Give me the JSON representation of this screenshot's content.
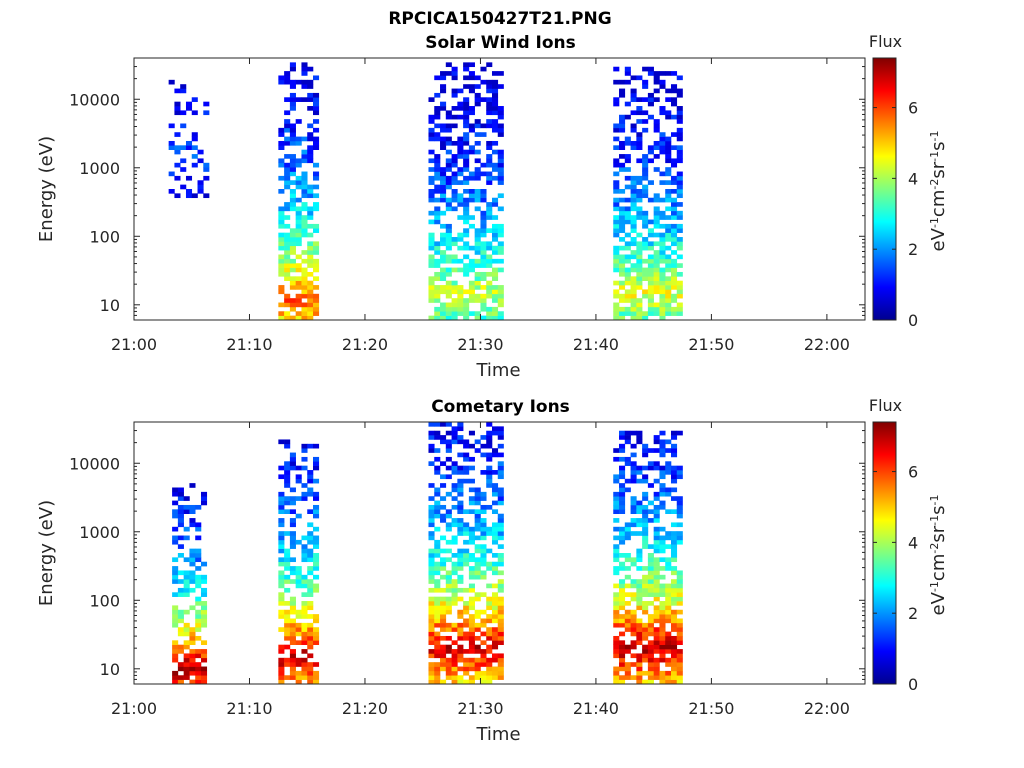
{
  "figure_title": "RPCICA150427T21.PNG",
  "chart_data": [
    {
      "type": "heatmap",
      "title": "Solar Wind Ions",
      "xlabel": "Time",
      "ylabel": "Energy (eV)",
      "x_ticks": [
        "21:00",
        "21:10",
        "21:20",
        "21:30",
        "21:40",
        "21:50",
        "22:00"
      ],
      "y_ticks": [
        "10",
        "100",
        "1000",
        "10000"
      ],
      "y_scale": "log",
      "xlim": [
        "21:00",
        "22:03"
      ],
      "ylim": [
        6,
        40000
      ],
      "colorbar": {
        "title": "Flux",
        "label_html": "eV<tspan dy='-6' font-size='11'>-1</tspan><tspan dy='6'>cm</tspan><tspan dy='-6' font-size='11'>-2</tspan><tspan dy='6'>sr</tspan><tspan dy='-6' font-size='11'>-1</tspan><tspan dy='6'>s</tspan><tspan dy='-6' font-size='11'>-1</tspan>",
        "ticks": [
          "0",
          "2",
          "4",
          "6"
        ],
        "range": [
          0,
          7.4
        ],
        "colormap": "jet"
      },
      "bursts": [
        {
          "t0": 3.0,
          "t1": 6.5,
          "emin": 350,
          "emax": 22000,
          "peak": 1.6,
          "peak_e": 2000,
          "density": 0.35
        },
        {
          "t0": 12.5,
          "t1": 16.0,
          "emin": 6,
          "emax": 35000,
          "peak": 5.8,
          "peak_e": 12,
          "density": 0.75
        },
        {
          "t0": 25.5,
          "t1": 32.0,
          "emin": 6,
          "emax": 35000,
          "peak": 4.2,
          "peak_e": 15,
          "density": 0.7
        },
        {
          "t0": 41.5,
          "t1": 47.5,
          "emin": 6,
          "emax": 30000,
          "peak": 4.4,
          "peak_e": 15,
          "density": 0.75
        }
      ]
    },
    {
      "type": "heatmap",
      "title": "Cometary Ions",
      "xlabel": "Time",
      "ylabel": "Energy (eV)",
      "x_ticks": [
        "21:00",
        "21:10",
        "21:20",
        "21:30",
        "21:40",
        "21:50",
        "22:00"
      ],
      "y_ticks": [
        "10",
        "100",
        "1000",
        "10000"
      ],
      "y_scale": "log",
      "xlim": [
        "21:00",
        "22:03"
      ],
      "ylim": [
        6,
        40000
      ],
      "colorbar": {
        "title": "Flux",
        "label_html": "eV<tspan dy='-6' font-size='11'>-1</tspan><tspan dy='6'>cm</tspan><tspan dy='-6' font-size='11'>-2</tspan><tspan dy='6'>sr</tspan><tspan dy='-6' font-size='11'>-1</tspan><tspan dy='6'>s</tspan><tspan dy='-6' font-size='11'>-1</tspan>",
        "ticks": [
          "0",
          "2",
          "4",
          "6"
        ],
        "range": [
          0,
          7.4
        ],
        "colormap": "jet"
      },
      "bursts": [
        {
          "t0": 3.3,
          "t1": 6.3,
          "emin": 6,
          "emax": 5000,
          "peak": 7.2,
          "peak_e": 10,
          "density": 0.7
        },
        {
          "t0": 12.5,
          "t1": 16.0,
          "emin": 6,
          "emax": 22000,
          "peak": 6.9,
          "peak_e": 15,
          "density": 0.7
        },
        {
          "t0": 25.5,
          "t1": 32.0,
          "emin": 6,
          "emax": 38000,
          "peak": 6.8,
          "peak_e": 20,
          "density": 0.75
        },
        {
          "t0": 41.5,
          "t1": 47.5,
          "emin": 6,
          "emax": 30000,
          "peak": 7.0,
          "peak_e": 20,
          "density": 0.75
        }
      ]
    }
  ]
}
